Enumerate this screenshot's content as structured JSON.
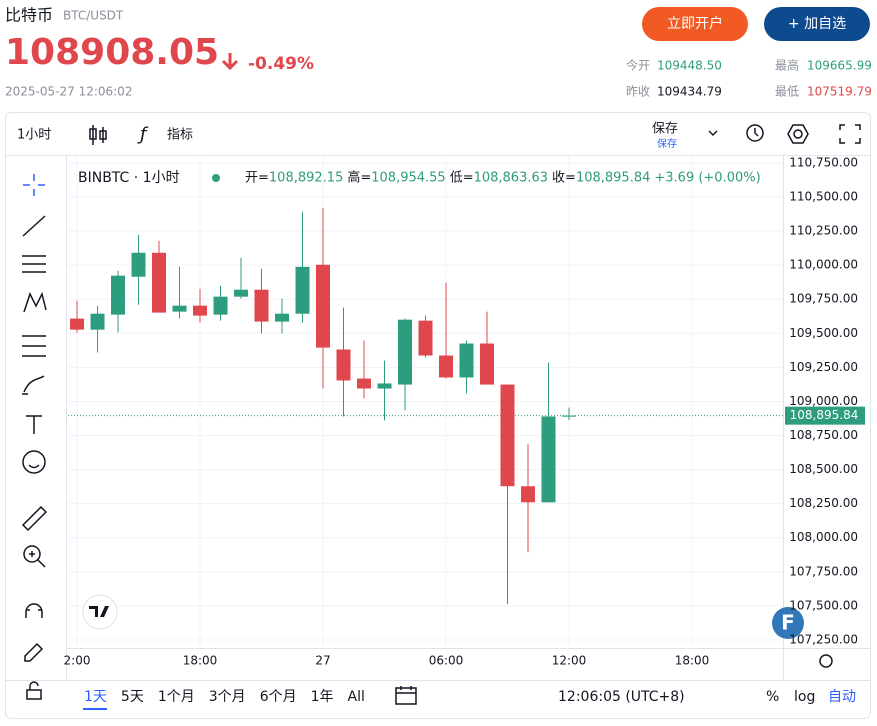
{
  "header": {
    "title": "比特币",
    "symbol": "BTC/USDT",
    "price": "108908.05",
    "change": "-0.49%",
    "time": "2025-05-27 12:06:02",
    "buttons": [
      "立即开户",
      "+ 加自选"
    ],
    "stats": [
      {
        "label": "今开",
        "value": "109448.50"
      },
      {
        "label": "最高",
        "value": "109665.99"
      },
      {
        "label": "昨收",
        "value": "109434.79"
      },
      {
        "label": "最低",
        "value": "107519.79"
      }
    ]
  },
  "toolbar": {
    "interval": "1小时",
    "indicators": "指标",
    "save": "保存",
    "save_sub": "保存"
  },
  "legend": {
    "symbol": "BINBTC · 1小时",
    "items": [
      {
        "label": "开=",
        "value": "108,892.15"
      },
      {
        "label": "高=",
        "value": "108,954.55"
      },
      {
        "label": "低=",
        "value": "108,863.63"
      },
      {
        "label": "收=",
        "value": "108,895.84"
      }
    ],
    "change": "+3.69 (+0.00%)"
  },
  "badge": "F",
  "bottom_bar": {
    "ranges": [
      "1天",
      "5天",
      "1个月",
      "3个月",
      "6个月",
      "1年",
      "All"
    ],
    "clock": "12:06:05 (UTC+8)",
    "options": [
      "%",
      "log",
      "自动"
    ]
  },
  "chart_data": {
    "type": "candlestick",
    "up_color": "#2e9c7e",
    "down_color": "#e0474c",
    "grid": true,
    "x": [
      0,
      1,
      2,
      3,
      4,
      5,
      6,
      7,
      8,
      9,
      10,
      11,
      12,
      13,
      14,
      15,
      16,
      17,
      18,
      19,
      20,
      21,
      22,
      23,
      24
    ],
    "open": [
      109608,
      109527,
      109637,
      109915,
      110091,
      109659,
      109703,
      109637,
      109769,
      109820,
      109586,
      109644,
      110003,
      109381,
      109168,
      109095,
      109124,
      109593,
      109337,
      109176,
      109425,
      109124,
      108378,
      108260,
      108892.15
    ],
    "high": [
      109739,
      109703,
      109959,
      110223,
      110179,
      109988,
      109827,
      109849,
      110054,
      109974,
      109754,
      110391,
      110420,
      109688,
      109447,
      109300,
      109608,
      109630,
      109871,
      109447,
      109659,
      109124,
      108685,
      109285,
      108954.55
    ],
    "low": [
      109505,
      109359,
      109505,
      109710,
      109652,
      109608,
      109578,
      109593,
      109754,
      109498,
      109498,
      109578,
      109095,
      108890,
      109022,
      108861,
      108934,
      109322,
      109168,
      109059,
      109124,
      107514,
      107894,
      108260,
      108863.63
    ],
    "close": [
      109527,
      109644,
      109923,
      110091,
      109652,
      109703,
      109630,
      109769,
      109820,
      109586,
      109644,
      109988,
      109395,
      109154,
      109095,
      109132,
      109600,
      109337,
      109176,
      109425,
      109124,
      108378,
      108260,
      108890,
      108895.84
    ],
    "xlim": [
      -0.44,
      34.44
    ],
    "ylim": [
      107191,
      110801
    ],
    "xticks": [
      {
        "value": 0,
        "label": "2:00"
      },
      {
        "value": 6,
        "label": "18:00"
      },
      {
        "value": 12,
        "label": "27"
      },
      {
        "value": 18,
        "label": "06:00"
      },
      {
        "value": 24,
        "label": "12:00"
      },
      {
        "value": 30,
        "label": "18:00"
      }
    ],
    "yticks": [
      {
        "value": 107250,
        "label": "107,250.00"
      },
      {
        "value": 107500,
        "label": "107,500.00"
      },
      {
        "value": 107750,
        "label": "107,750.00"
      },
      {
        "value": 108000,
        "label": "108,000.00"
      },
      {
        "value": 108250,
        "label": "108,250.00"
      },
      {
        "value": 108500,
        "label": "108,500.00"
      },
      {
        "value": 108750,
        "label": "108,750.00"
      },
      {
        "value": 109000,
        "label": "109,000.00"
      },
      {
        "value": 109250,
        "label": "109,250.00"
      },
      {
        "value": 109500,
        "label": "109,500.00"
      },
      {
        "value": 109750,
        "label": "109,750.00"
      },
      {
        "value": 110000,
        "label": "110,000.00"
      },
      {
        "value": 110250,
        "label": "110,250.00"
      },
      {
        "value": 110500,
        "label": "110,500.00"
      },
      {
        "value": 110750,
        "label": "110,750.00"
      }
    ],
    "last_price": {
      "value": 108895.84,
      "label": "108,895.84"
    }
  }
}
